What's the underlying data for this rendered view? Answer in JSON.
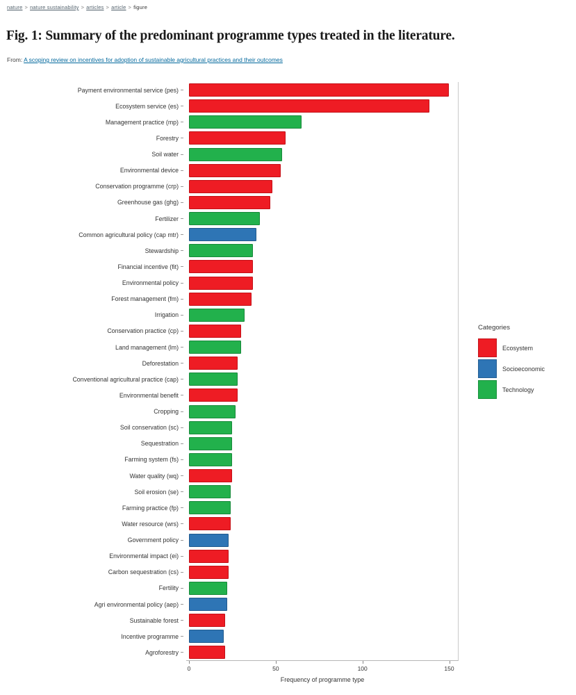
{
  "breadcrumb": {
    "separator": ">",
    "items": [
      {
        "label": "nature",
        "link": true
      },
      {
        "label": "nature sustainability",
        "link": true
      },
      {
        "label": "articles",
        "link": true
      },
      {
        "label": "article",
        "link": true
      },
      {
        "label": "figure",
        "link": false
      }
    ]
  },
  "figure": {
    "title": "Fig. 1: Summary of the predominant programme types treated in the literature.",
    "from_label": "From:",
    "source_link": "A scoping review on incentives for adoption of sustainable agricultural practices and their outcomes"
  },
  "chart_data": {
    "type": "bar",
    "orientation": "horizontal",
    "xlabel": "Frequency of programme type",
    "x_ticks": [
      0,
      50,
      100,
      150
    ],
    "x_max": 157,
    "grid": false,
    "legend_position": "right",
    "legend": {
      "title": "Categories",
      "items": [
        {
          "label": "Ecosystem",
          "color": "#ee1c24",
          "border": "#c40f16"
        },
        {
          "label": "Socioeconomic",
          "color": "#2e75b5",
          "border": "#225a8d"
        },
        {
          "label": "Technology",
          "color": "#22b14c",
          "border": "#17893a"
        }
      ]
    },
    "bars": [
      {
        "label": "Payment environmental service (pes)",
        "value": 150,
        "category": "Ecosystem"
      },
      {
        "label": "Ecosystem service (es)",
        "value": 139,
        "category": "Ecosystem"
      },
      {
        "label": "Management practice (mp)",
        "value": 65,
        "category": "Technology"
      },
      {
        "label": "Forestry",
        "value": 56,
        "category": "Ecosystem"
      },
      {
        "label": "Soil water",
        "value": 54,
        "category": "Technology"
      },
      {
        "label": "Environmental device",
        "value": 53,
        "category": "Ecosystem"
      },
      {
        "label": "Conservation programme (crp)",
        "value": 48,
        "category": "Ecosystem"
      },
      {
        "label": "Greenhouse gas (ghg)",
        "value": 47,
        "category": "Ecosystem"
      },
      {
        "label": "Fertilizer",
        "value": 41,
        "category": "Technology"
      },
      {
        "label": "Common agricultural policy (cap mtr)",
        "value": 39,
        "category": "Socioeconomic"
      },
      {
        "label": "Stewardship",
        "value": 37,
        "category": "Technology"
      },
      {
        "label": "Financial incentive (fit)",
        "value": 37,
        "category": "Ecosystem"
      },
      {
        "label": "Environmental policy",
        "value": 37,
        "category": "Ecosystem"
      },
      {
        "label": "Forest management (fm)",
        "value": 36,
        "category": "Ecosystem"
      },
      {
        "label": "Irrigation",
        "value": 32,
        "category": "Technology"
      },
      {
        "label": "Conservation practice (cp)",
        "value": 30,
        "category": "Ecosystem"
      },
      {
        "label": "Land management (lm)",
        "value": 30,
        "category": "Technology"
      },
      {
        "label": "Deforestation",
        "value": 28,
        "category": "Ecosystem"
      },
      {
        "label": "Conventional agricultural practice (cap)",
        "value": 28,
        "category": "Technology"
      },
      {
        "label": "Environmental benefit",
        "value": 28,
        "category": "Ecosystem"
      },
      {
        "label": "Cropping",
        "value": 27,
        "category": "Technology"
      },
      {
        "label": "Soil conservation (sc)",
        "value": 25,
        "category": "Technology"
      },
      {
        "label": "Sequestration",
        "value": 25,
        "category": "Technology"
      },
      {
        "label": "Farming system (fs)",
        "value": 25,
        "category": "Technology"
      },
      {
        "label": "Water quality (wq)",
        "value": 25,
        "category": "Ecosystem"
      },
      {
        "label": "Soil erosion (se)",
        "value": 24,
        "category": "Technology"
      },
      {
        "label": "Farming practice (fp)",
        "value": 24,
        "category": "Technology"
      },
      {
        "label": "Water resource (wrs)",
        "value": 24,
        "category": "Ecosystem"
      },
      {
        "label": "Government policy",
        "value": 23,
        "category": "Socioeconomic"
      },
      {
        "label": "Environmental impact (ei)",
        "value": 23,
        "category": "Ecosystem"
      },
      {
        "label": "Carbon sequestration (cs)",
        "value": 23,
        "category": "Ecosystem"
      },
      {
        "label": "Fertility",
        "value": 22,
        "category": "Technology"
      },
      {
        "label": "Agri environmental policy (aep)",
        "value": 22,
        "category": "Socioeconomic"
      },
      {
        "label": "Sustainable forest",
        "value": 21,
        "category": "Ecosystem"
      },
      {
        "label": "Incentive programme",
        "value": 20,
        "category": "Socioeconomic"
      },
      {
        "label": "Agroforestry",
        "value": 21,
        "category": "Ecosystem"
      }
    ]
  }
}
